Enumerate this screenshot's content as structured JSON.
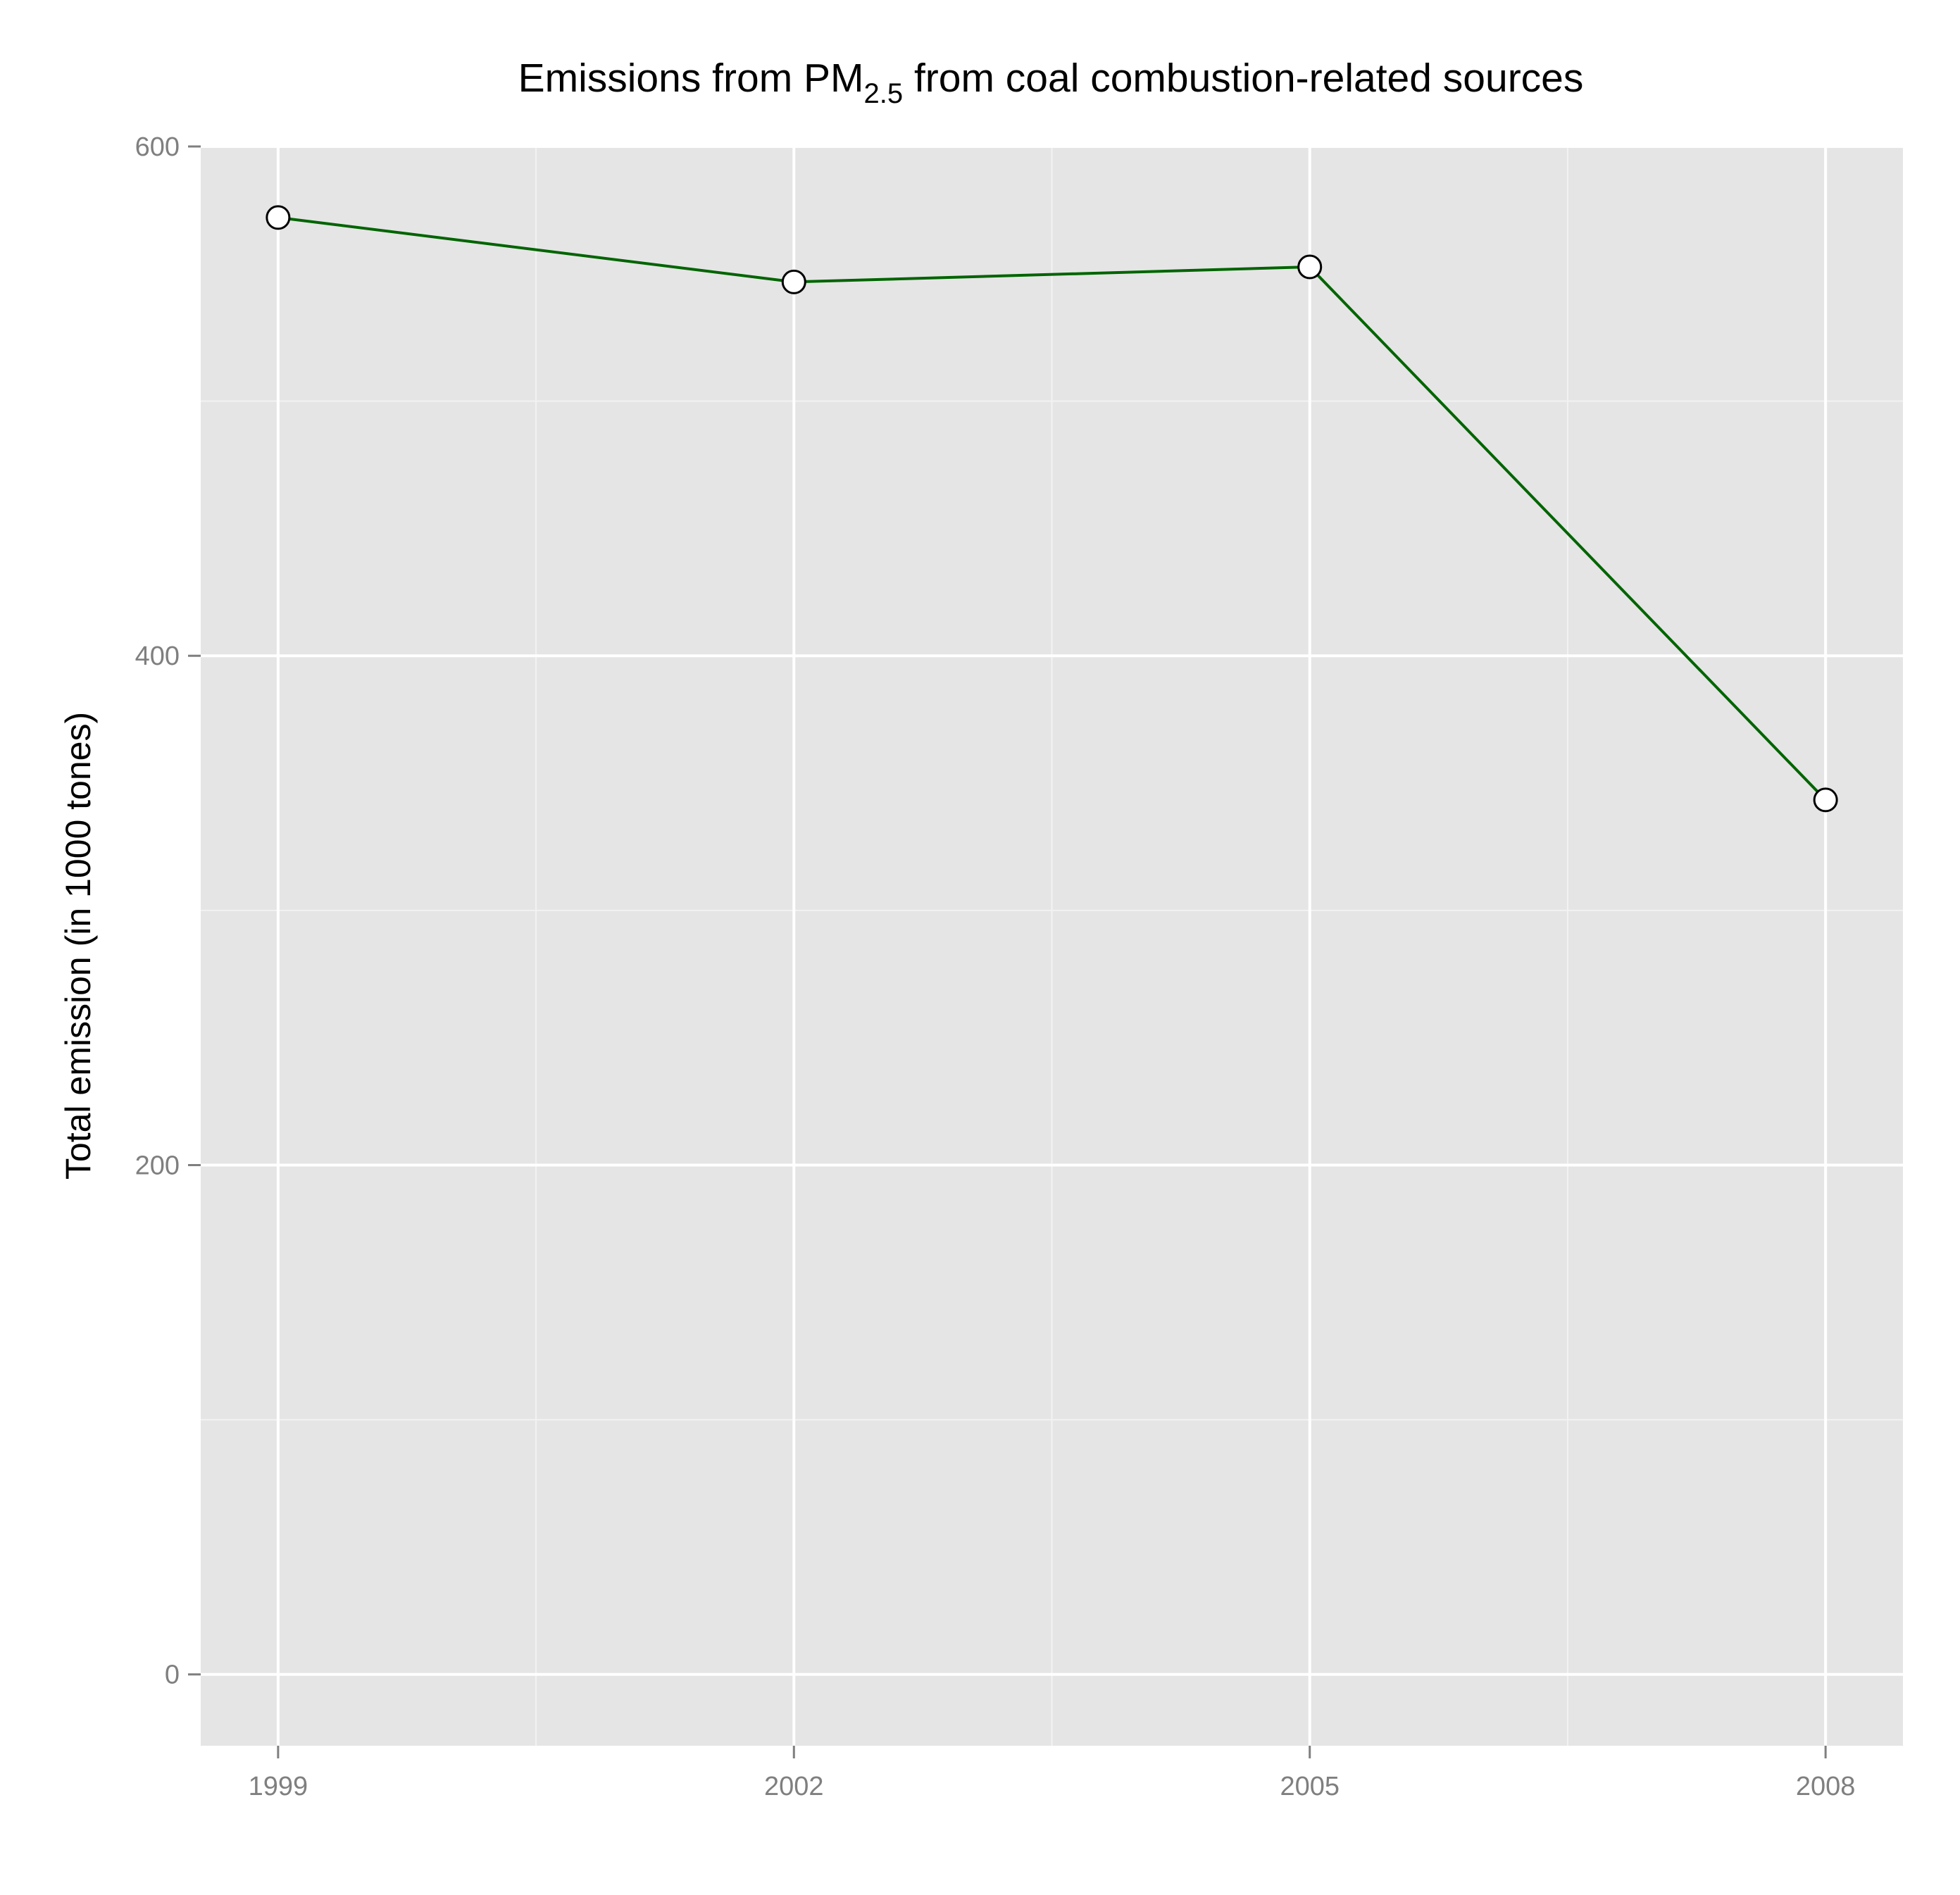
{
  "chart_data": {
    "type": "line",
    "title": {
      "prefix": "Emissions from PM",
      "subscript": "2.5",
      "suffix": " from coal combustion-related sources"
    },
    "xlabel": "",
    "ylabel": "Total emission (in 1000 tones)",
    "x": [
      1999,
      2002,
      2005,
      2008
    ],
    "x_tick_labels": [
      "1999",
      "2002",
      "2005",
      "2008"
    ],
    "y_ticks": [
      0,
      200,
      400,
      600
    ],
    "y_tick_labels": [
      "0",
      "200",
      "400",
      "600"
    ],
    "xlim": [
      1998.55,
      2008.45
    ],
    "ylim": [
      -28,
      600
    ],
    "series": [
      {
        "values": [
          572.1,
          546.8,
          552.7,
          343.4
        ]
      }
    ],
    "grid": true,
    "legend": "none",
    "colors": {
      "line": "#006400",
      "marker_fill": "#ffffff",
      "marker_stroke": "#000000",
      "panel_background": "#e5e5e5",
      "grid_major": "#ffffff",
      "grid_minor": "#f2f2f2"
    }
  }
}
